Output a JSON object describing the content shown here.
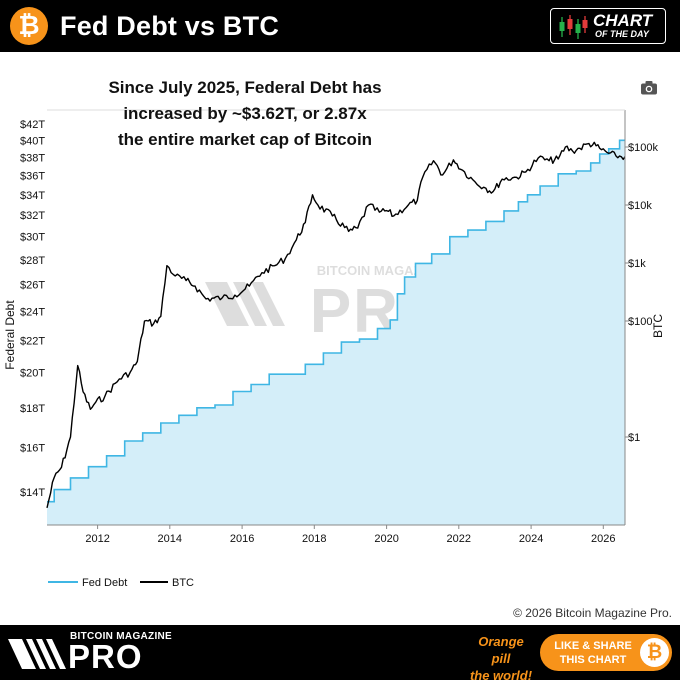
{
  "header": {
    "title": "Fed Debt vs BTC",
    "btc_icon": "bitcoin-icon",
    "badge_line1": "CHART",
    "badge_line2": "OF THE DAY"
  },
  "headline": {
    "line1": "Since July 2025, Federal Debt has",
    "line2": "increased by ~$3.62T, or 2.87x",
    "line3": "the entire market cap of Bitcoin"
  },
  "watermark": {
    "line1": "BITCOIN MAGAZINE",
    "line2": "PRO"
  },
  "footer": {
    "copyright": "© 2026 Bitcoin Magazine Pro.",
    "brand_small": "BITCOIN MAGAZINE",
    "brand_big": "PRO",
    "tagline_line1": "Orange pill",
    "tagline_line2": "the world!",
    "share_line1": "LIKE & SHARE",
    "share_line2": "THIS CHART"
  },
  "colors": {
    "fed_debt": "#3fb6e4",
    "fed_fill": "#d4eef9",
    "btc": "#000000",
    "brand_orange": "#f7931a"
  },
  "chart_data": {
    "type": "line",
    "title": "",
    "ylabel_left": "Federal Debt",
    "ylabel_right": "BTC",
    "y_left_scale": "log",
    "y_right_scale": "log",
    "y_left_ticks": [
      "$14T",
      "$16T",
      "$18T",
      "$20T",
      "$22T",
      "$24T",
      "$26T",
      "$28T",
      "$30T",
      "$32T",
      "$34T",
      "$36T",
      "$38T",
      "$40T",
      "$42T"
    ],
    "y_right_ticks": [
      "$1",
      "$100",
      "$1k",
      "$10k",
      "$100k"
    ],
    "x_ticks": [
      "2012",
      "2014",
      "2016",
      "2018",
      "2020",
      "2022",
      "2024",
      "2026"
    ],
    "xlim": [
      2010.6,
      2026.6
    ],
    "legend": "bottom-left",
    "series": [
      {
        "name": "Fed Debt",
        "axis": "left",
        "x": [
          2010.6,
          2011.0,
          2011.5,
          2012.0,
          2012.5,
          2013.0,
          2013.5,
          2014.0,
          2014.5,
          2015.0,
          2015.5,
          2016.0,
          2016.5,
          2017.0,
          2017.5,
          2018.0,
          2018.5,
          2019.0,
          2019.5,
          2020.0,
          2020.2,
          2020.4,
          2020.6,
          2021.0,
          2021.5,
          2022.0,
          2022.5,
          2023.0,
          2023.5,
          2023.8,
          2024.0,
          2024.5,
          2025.0,
          2025.5,
          2025.8,
          2026.0,
          2026.3,
          2026.6
        ],
        "y": [
          13.6,
          14.1,
          14.6,
          15.1,
          15.6,
          16.3,
          16.7,
          17.2,
          17.6,
          18.0,
          18.15,
          18.9,
          19.3,
          19.9,
          19.9,
          20.5,
          21.2,
          21.9,
          22.1,
          22.8,
          23.4,
          25.3,
          26.6,
          27.7,
          28.5,
          30.0,
          30.6,
          31.4,
          32.4,
          33.3,
          34.0,
          34.9,
          36.2,
          36.5,
          37.4,
          38.4,
          39.0,
          40.0
        ]
      },
      {
        "name": "BTC",
        "axis": "right",
        "x": [
          2010.6,
          2010.8,
          2011.0,
          2011.25,
          2011.45,
          2011.6,
          2011.8,
          2011.95,
          2012.2,
          2012.6,
          2012.9,
          2013.1,
          2013.3,
          2013.55,
          2013.75,
          2013.92,
          2014.15,
          2014.45,
          2014.7,
          2015.0,
          2015.45,
          2015.8,
          2016.2,
          2016.55,
          2016.9,
          2017.2,
          2017.5,
          2017.75,
          2017.95,
          2018.1,
          2018.5,
          2018.95,
          2019.2,
          2019.5,
          2019.8,
          2020.0,
          2020.2,
          2020.6,
          2020.85,
          2021.0,
          2021.3,
          2021.55,
          2021.85,
          2022.1,
          2022.45,
          2022.75,
          2022.95,
          2023.2,
          2023.6,
          2023.85,
          2024.2,
          2024.5,
          2024.75,
          2024.95,
          2025.15,
          2025.35,
          2025.6,
          2025.8,
          2025.95,
          2026.15,
          2026.35,
          2026.6
        ],
        "y": [
          0.06,
          0.2,
          0.3,
          1,
          17,
          6,
          3,
          4,
          5,
          10,
          13,
          20,
          100,
          90,
          120,
          900,
          600,
          500,
          400,
          240,
          250,
          280,
          400,
          680,
          900,
          1200,
          2500,
          5000,
          15000,
          10000,
          6500,
          3500,
          4000,
          10000,
          7500,
          8000,
          6500,
          10000,
          12000,
          30000,
          58000,
          33000,
          60000,
          40000,
          25000,
          19500,
          17000,
          28000,
          30000,
          37000,
          65000,
          58000,
          62000,
          100000,
          85000,
          95000,
          115000,
          105000,
          90000,
          78000,
          70000,
          68000
        ]
      }
    ]
  }
}
